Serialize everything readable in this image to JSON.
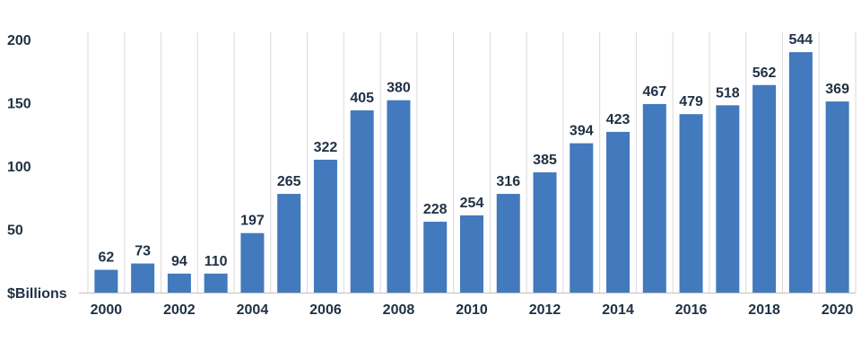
{
  "chart_data": {
    "type": "bar",
    "ylabel": "$Billions",
    "ylim": [
      0,
      200
    ],
    "yticks": [
      50,
      100,
      150,
      200
    ],
    "grid": "vertical",
    "colors": {
      "bar": "#4379bd",
      "text": "#1f3044",
      "grid": "#d9d9d9"
    },
    "categories": [
      "2000",
      "2001",
      "2002",
      "2003",
      "2004",
      "2005",
      "2006",
      "2007",
      "2008",
      "2009",
      "2010",
      "2011",
      "2012",
      "2013",
      "2014",
      "2015",
      "2016",
      "2017",
      "2018",
      "2019",
      "2020"
    ],
    "x_tick_labels": [
      "2000",
      "",
      "2002",
      "",
      "2004",
      "",
      "2006",
      "",
      "2008",
      "",
      "2010",
      "",
      "2012",
      "",
      "2014",
      "",
      "2016",
      "",
      "2018",
      "",
      "2020"
    ],
    "values": [
      18,
      23,
      15,
      15,
      47,
      78,
      105,
      144,
      152,
      56,
      61,
      78,
      95,
      118,
      127,
      149,
      141,
      148,
      164,
      190,
      151
    ],
    "data_labels": [
      "62",
      "73",
      "94",
      "110",
      "197",
      "265",
      "322",
      "405",
      "380",
      "228",
      "254",
      "316",
      "385",
      "394",
      "423",
      "467",
      "479",
      "518",
      "562",
      "544",
      "369"
    ]
  }
}
